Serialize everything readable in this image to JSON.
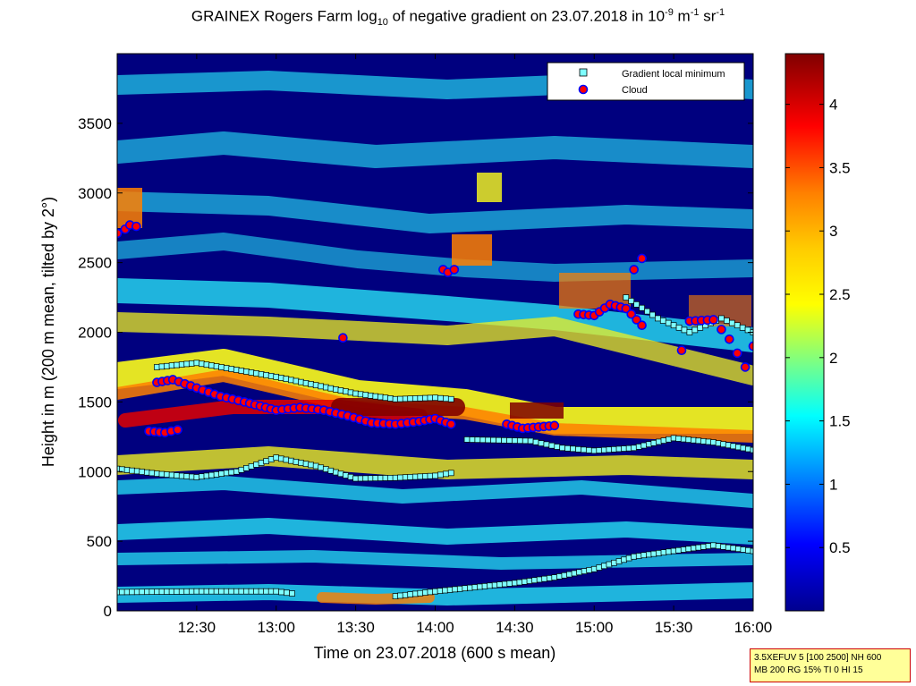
{
  "title": {
    "pre": "GRAINEX Rogers Farm log",
    "sub": "10",
    "mid": " of negative gradient on 23.07.2018 in 10",
    "sup1": "-9",
    "unit1": " m",
    "sup2": "-1",
    "unit2": " sr",
    "sup3": "-1"
  },
  "colors": {
    "deep_blue": "#00007f",
    "cyan": "#22c8e8",
    "yellow": "#f0f020",
    "orange": "#ff8000",
    "red": "#e00000",
    "dark_red": "#800000",
    "minimum_marker_fill": "#7fffff",
    "cloud_marker_fill": "#ff0000",
    "cloud_marker_edge": "#0000ff"
  },
  "chart_data": {
    "type": "heatmap",
    "xlabel": "Time on 23.07.2018 (600 s mean)",
    "ylabel": "Height in m (200 m mean, tilted by 2°)",
    "x_ticks": [
      "12:30",
      "13:00",
      "13:30",
      "14:00",
      "14:30",
      "15:00",
      "15:30",
      "16:00"
    ],
    "x_tick_hours": [
      12.5,
      13.0,
      13.5,
      14.0,
      14.5,
      15.0,
      15.5,
      16.0
    ],
    "xlim_hours": [
      12.0,
      16.0
    ],
    "y_ticks": [
      "0",
      "500",
      "1000",
      "1500",
      "2000",
      "2500",
      "3000",
      "3500"
    ],
    "y_tick_values": [
      0,
      500,
      1000,
      1500,
      2000,
      2500,
      3000,
      3500
    ],
    "ylim": [
      0,
      4000
    ],
    "colorbar": {
      "ticks": [
        "0.5",
        "1",
        "1.5",
        "2",
        "2.5",
        "3",
        "3.5",
        "4"
      ],
      "tick_values": [
        0.5,
        1,
        1.5,
        2,
        2.5,
        3,
        3.5,
        4
      ],
      "clim": [
        0.0,
        4.4
      ]
    },
    "legend": {
      "position": "top-right",
      "entries": [
        "Gradient local minimum",
        "Cloud"
      ]
    },
    "series": [
      {
        "name": "Gradient local minimum",
        "marker": "square",
        "segments": [
          {
            "x": [
              12.0,
              12.25,
              12.5,
              12.75,
              13.0,
              13.25,
              13.5,
              13.75,
              14.0,
              14.1
            ],
            "y": [
              1020,
              985,
              960,
              1000,
              1100,
              1040,
              950,
              955,
              970,
              990
            ]
          },
          {
            "x": [
              14.2,
              14.4,
              14.6,
              14.8,
              15.0,
              15.25,
              15.5,
              15.75,
              16.0
            ],
            "y": [
              1230,
              1225,
              1220,
              1170,
              1150,
              1170,
              1240,
              1210,
              1155
            ]
          },
          {
            "x": [
              12.0,
              12.5,
              13.0,
              13.1
            ],
            "y": [
              135,
              140,
              140,
              125
            ]
          },
          {
            "x": [
              13.75,
              14.0,
              14.25,
              14.5,
              14.75,
              15.0,
              15.25,
              15.5,
              15.75,
              16.0
            ],
            "y": [
              105,
              140,
              170,
              200,
              240,
              300,
              390,
              430,
              470,
              430
            ]
          },
          {
            "x": [
              12.25,
              12.5,
              12.75,
              13.0,
              13.25,
              13.5,
              13.75,
              14.0,
              14.1
            ],
            "y": [
              1750,
              1780,
              1730,
              1680,
              1620,
              1560,
              1520,
              1530,
              1520
            ]
          },
          {
            "x": [
              15.2,
              15.4,
              15.6,
              15.8,
              16.0
            ],
            "y": [
              2250,
              2100,
              2000,
              2100,
              2000
            ]
          }
        ]
      },
      {
        "name": "Cloud",
        "marker": "circle",
        "segments": [
          {
            "x": [
              12.0,
              12.05,
              12.08,
              12.12
            ],
            "y": [
              2710,
              2740,
              2770,
              2760
            ]
          },
          {
            "x": [
              12.25,
              12.35,
              12.5,
              12.65,
              12.8,
              13.0,
              13.15,
              13.3,
              13.45,
              13.6,
              13.75,
              13.9,
              14.0,
              14.1
            ],
            "y": [
              1640,
              1660,
              1600,
              1540,
              1500,
              1440,
              1460,
              1440,
              1400,
              1350,
              1340,
              1360,
              1380,
              1340
            ]
          },
          {
            "x": [
              12.2,
              12.3,
              12.38
            ],
            "y": [
              1290,
              1280,
              1300
            ]
          },
          {
            "x": [
              14.05,
              14.08,
              14.12
            ],
            "y": [
              2450,
              2430,
              2450
            ]
          },
          {
            "x": [
              13.42
            ],
            "y": [
              1960
            ]
          },
          {
            "x": [
              14.45,
              14.55,
              14.65,
              14.75
            ],
            "y": [
              1340,
              1310,
              1320,
              1330
            ]
          },
          {
            "x": [
              14.9,
              15.0,
              15.1,
              15.2,
              15.3
            ],
            "y": [
              2130,
              2120,
              2200,
              2170,
              2050
            ]
          },
          {
            "x": [
              15.25,
              15.3
            ],
            "y": [
              2450,
              2530
            ]
          },
          {
            "x": [
              15.55,
              15.6,
              15.75,
              15.8,
              15.85,
              15.9,
              15.95,
              16.0
            ],
            "y": [
              1870,
              2080,
              2090,
              2020,
              1950,
              1850,
              1750,
              1900
            ]
          }
        ]
      }
    ]
  },
  "info_box": {
    "line1": "3.5XEFUV 5 [100 2500] NH 600",
    "line2": "MB 200 RG 15% TI 0 HI 15"
  }
}
